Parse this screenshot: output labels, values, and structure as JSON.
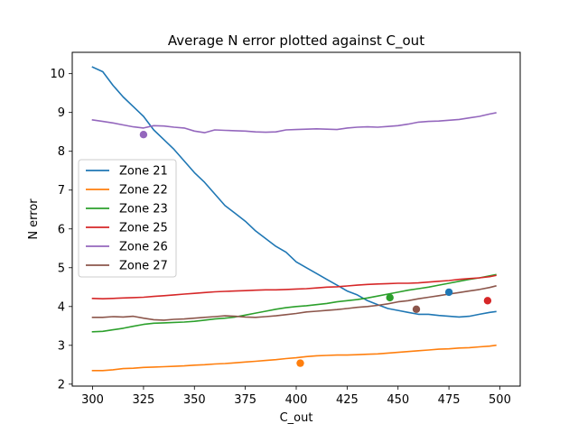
{
  "chart_data": {
    "type": "line",
    "title": "Average N error plotted against C_out",
    "xlabel": "C_out",
    "ylabel": "N error",
    "xlim": [
      290,
      510
    ],
    "ylim": [
      1.95,
      10.55
    ],
    "xticks": [
      300,
      325,
      350,
      375,
      400,
      425,
      450,
      475,
      500
    ],
    "yticks": [
      2,
      3,
      4,
      5,
      6,
      7,
      8,
      9,
      10
    ],
    "grid": false,
    "legend_position": "center-left",
    "series": [
      {
        "name": "Zone 21",
        "color": "#1f77b4",
        "x": [
          300,
          305,
          310,
          315,
          320,
          325,
          330,
          335,
          340,
          345,
          350,
          355,
          360,
          365,
          370,
          375,
          380,
          385,
          390,
          395,
          400,
          405,
          410,
          415,
          420,
          425,
          430,
          435,
          440,
          445,
          450,
          455,
          460,
          465,
          470,
          475,
          480,
          485,
          490,
          495,
          498
        ],
        "y": [
          10.17,
          10.05,
          9.7,
          9.4,
          9.15,
          8.9,
          8.55,
          8.3,
          8.05,
          7.75,
          7.45,
          7.2,
          6.9,
          6.6,
          6.4,
          6.2,
          5.95,
          5.75,
          5.55,
          5.4,
          5.15,
          5.0,
          4.85,
          4.7,
          4.55,
          4.4,
          4.3,
          4.15,
          4.05,
          3.95,
          3.9,
          3.85,
          3.8,
          3.8,
          3.77,
          3.75,
          3.73,
          3.75,
          3.8,
          3.85,
          3.87
        ]
      },
      {
        "name": "Zone 22",
        "color": "#ff7f0e",
        "x": [
          300,
          305,
          310,
          315,
          320,
          325,
          330,
          335,
          340,
          345,
          350,
          355,
          360,
          365,
          370,
          375,
          380,
          385,
          390,
          395,
          400,
          405,
          410,
          415,
          420,
          425,
          430,
          435,
          440,
          445,
          450,
          455,
          460,
          465,
          470,
          475,
          480,
          485,
          490,
          495,
          498
        ],
        "y": [
          2.35,
          2.35,
          2.37,
          2.4,
          2.41,
          2.43,
          2.44,
          2.45,
          2.46,
          2.47,
          2.49,
          2.5,
          2.52,
          2.53,
          2.55,
          2.57,
          2.59,
          2.61,
          2.63,
          2.66,
          2.68,
          2.71,
          2.73,
          2.74,
          2.75,
          2.75,
          2.76,
          2.77,
          2.78,
          2.8,
          2.82,
          2.84,
          2.86,
          2.88,
          2.9,
          2.91,
          2.93,
          2.94,
          2.96,
          2.98,
          3.0
        ]
      },
      {
        "name": "Zone 23",
        "color": "#2ca02c",
        "x": [
          300,
          305,
          310,
          315,
          320,
          325,
          330,
          335,
          340,
          345,
          350,
          355,
          360,
          365,
          370,
          375,
          380,
          385,
          390,
          395,
          400,
          405,
          410,
          415,
          420,
          425,
          430,
          435,
          440,
          445,
          450,
          455,
          460,
          465,
          470,
          475,
          480,
          485,
          490,
          495,
          498
        ],
        "y": [
          3.35,
          3.36,
          3.4,
          3.44,
          3.49,
          3.54,
          3.57,
          3.58,
          3.59,
          3.6,
          3.62,
          3.65,
          3.68,
          3.7,
          3.73,
          3.78,
          3.83,
          3.88,
          3.93,
          3.97,
          4.0,
          4.02,
          4.05,
          4.08,
          4.12,
          4.15,
          4.18,
          4.22,
          4.27,
          4.32,
          4.37,
          4.42,
          4.46,
          4.5,
          4.55,
          4.6,
          4.65,
          4.7,
          4.74,
          4.79,
          4.82
        ]
      },
      {
        "name": "Zone 25",
        "color": "#d62728",
        "x": [
          300,
          305,
          310,
          315,
          320,
          325,
          330,
          335,
          340,
          345,
          350,
          355,
          360,
          365,
          370,
          375,
          380,
          385,
          390,
          395,
          400,
          405,
          410,
          415,
          420,
          425,
          430,
          435,
          440,
          445,
          450,
          455,
          460,
          465,
          470,
          475,
          480,
          485,
          490,
          495,
          498
        ],
        "y": [
          4.21,
          4.2,
          4.21,
          4.22,
          4.23,
          4.24,
          4.26,
          4.28,
          4.3,
          4.32,
          4.34,
          4.36,
          4.38,
          4.39,
          4.4,
          4.41,
          4.42,
          4.43,
          4.43,
          4.44,
          4.45,
          4.46,
          4.48,
          4.5,
          4.51,
          4.53,
          4.55,
          4.57,
          4.58,
          4.59,
          4.6,
          4.6,
          4.61,
          4.63,
          4.65,
          4.67,
          4.7,
          4.72,
          4.74,
          4.77,
          4.8
        ]
      },
      {
        "name": "Zone 26",
        "color": "#9467bd",
        "x": [
          300,
          305,
          310,
          315,
          320,
          325,
          330,
          335,
          340,
          345,
          350,
          355,
          360,
          365,
          370,
          375,
          380,
          385,
          390,
          395,
          400,
          405,
          410,
          415,
          420,
          425,
          430,
          435,
          440,
          445,
          450,
          455,
          460,
          465,
          470,
          475,
          480,
          485,
          490,
          495,
          498
        ],
        "y": [
          8.81,
          8.77,
          8.73,
          8.68,
          8.63,
          8.6,
          8.66,
          8.65,
          8.62,
          8.6,
          8.52,
          8.48,
          8.55,
          8.54,
          8.53,
          8.52,
          8.5,
          8.49,
          8.5,
          8.55,
          8.56,
          8.57,
          8.58,
          8.57,
          8.56,
          8.6,
          8.62,
          8.63,
          8.62,
          8.64,
          8.66,
          8.7,
          8.75,
          8.77,
          8.78,
          8.8,
          8.82,
          8.86,
          8.9,
          8.96,
          8.99
        ]
      },
      {
        "name": "Zone 27",
        "color": "#8c564b",
        "x": [
          300,
          305,
          310,
          315,
          320,
          325,
          330,
          335,
          340,
          345,
          350,
          355,
          360,
          365,
          370,
          375,
          380,
          385,
          390,
          395,
          400,
          405,
          410,
          415,
          420,
          425,
          430,
          435,
          440,
          445,
          450,
          455,
          460,
          465,
          470,
          475,
          480,
          485,
          490,
          495,
          498
        ],
        "y": [
          3.72,
          3.72,
          3.74,
          3.73,
          3.75,
          3.7,
          3.66,
          3.65,
          3.67,
          3.68,
          3.7,
          3.72,
          3.74,
          3.76,
          3.75,
          3.73,
          3.72,
          3.74,
          3.76,
          3.79,
          3.82,
          3.86,
          3.88,
          3.9,
          3.92,
          3.95,
          3.98,
          4.0,
          4.03,
          4.07,
          4.12,
          4.15,
          4.2,
          4.24,
          4.28,
          4.32,
          4.36,
          4.4,
          4.44,
          4.49,
          4.53
        ]
      }
    ],
    "points": [
      {
        "series": "Zone 21",
        "color": "#1f77b4",
        "x": 475,
        "y": 4.37
      },
      {
        "series": "Zone 22",
        "color": "#ff7f0e",
        "x": 402,
        "y": 2.54
      },
      {
        "series": "Zone 23",
        "color": "#2ca02c",
        "x": 446,
        "y": 4.23
      },
      {
        "series": "Zone 25",
        "color": "#d62728",
        "x": 494,
        "y": 4.15
      },
      {
        "series": "Zone 26",
        "color": "#9467bd",
        "x": 325,
        "y": 8.43
      },
      {
        "series": "Zone 27",
        "color": "#8c564b",
        "x": 459,
        "y": 3.93
      }
    ]
  }
}
